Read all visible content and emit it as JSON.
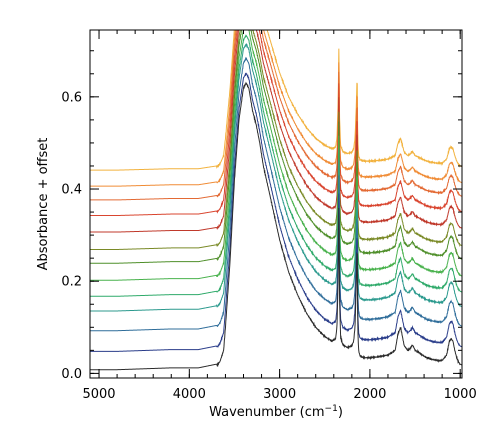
{
  "chart_data": {
    "type": "line",
    "xlabel": "Wavenumber (cm",
    "xlabel_sup": "−1",
    "xlabel_end": ")",
    "ylabel": "Absorbance + offset",
    "xlim": [
      5100,
      980
    ],
    "ylim": [
      -0.01,
      0.745
    ],
    "x_reversed": true,
    "grid": false,
    "x_ticks": [
      {
        "value": 5000,
        "label": "5000"
      },
      {
        "value": 4000,
        "label": "4000"
      },
      {
        "value": 3000,
        "label": "3000"
      },
      {
        "value": 2000,
        "label": "2000"
      },
      {
        "value": 1000,
        "label": "1000"
      }
    ],
    "y_ticks": [
      {
        "value": 0.0,
        "label": "0.0"
      },
      {
        "value": 0.2,
        "label": "0.2"
      },
      {
        "value": 0.4,
        "label": "0.4"
      },
      {
        "value": 0.6,
        "label": "0.6"
      }
    ],
    "x_minor_step": 200,
    "y_minor_step": 0.05,
    "spectrum_shape": {
      "x": [
        5100,
        4800,
        4500,
        4200,
        3900,
        3700,
        3690,
        3660,
        3620,
        3600,
        3550,
        3500,
        3450,
        3400,
        3370,
        3340,
        3300,
        3260,
        3220,
        3180,
        3100,
        3000,
        2900,
        2800,
        2700,
        2600,
        2500,
        2420,
        2380,
        2365,
        2352,
        2343,
        2336,
        2325,
        2300,
        2250,
        2200,
        2180,
        2165,
        2150,
        2141,
        2135,
        2125,
        2110,
        2080,
        2050,
        2000,
        1900,
        1800,
        1720,
        1690,
        1660,
        1640,
        1620,
        1580,
        1550,
        1530,
        1510,
        1500,
        1480,
        1450,
        1420,
        1380,
        1340,
        1300,
        1250,
        1200,
        1150,
        1120,
        1100,
        1080,
        1060,
        1040,
        1020,
        1000,
        980
      ],
      "y": [
        0.008,
        0.008,
        0.01,
        0.012,
        0.012,
        0.02,
        0.018,
        0.026,
        0.05,
        0.1,
        0.24,
        0.42,
        0.55,
        0.62,
        0.63,
        0.618,
        0.57,
        0.54,
        0.5,
        0.45,
        0.38,
        0.29,
        0.22,
        0.17,
        0.13,
        0.1,
        0.08,
        0.07,
        0.075,
        0.1,
        0.2,
        0.38,
        0.16,
        0.08,
        0.062,
        0.056,
        0.06,
        0.07,
        0.1,
        0.2,
        0.29,
        0.1,
        0.05,
        0.038,
        0.035,
        0.034,
        0.034,
        0.036,
        0.04,
        0.05,
        0.085,
        0.1,
        0.08,
        0.06,
        0.05,
        0.055,
        0.062,
        0.055,
        0.05,
        0.048,
        0.044,
        0.04,
        0.035,
        0.032,
        0.03,
        0.028,
        0.028,
        0.04,
        0.07,
        0.075,
        0.07,
        0.05,
        0.035,
        0.025,
        0.02,
        0.018
      ]
    },
    "series": [
      {
        "color": "#2b2b2b",
        "offset": 0.0,
        "intensity": 1.0
      },
      {
        "color": "#2a3d8a",
        "offset": 0.04,
        "intensity": 0.97
      },
      {
        "color": "#2f6d9a",
        "offset": 0.085,
        "intensity": 0.95
      },
      {
        "color": "#2c9a8e",
        "offset": 0.128,
        "intensity": 0.93
      },
      {
        "color": "#2faa6a",
        "offset": 0.16,
        "intensity": 0.91
      },
      {
        "color": "#49b24d",
        "offset": 0.195,
        "intensity": 0.89
      },
      {
        "color": "#4f8f2a",
        "offset": 0.232,
        "intensity": 0.87
      },
      {
        "color": "#7a8a27",
        "offset": 0.262,
        "intensity": 0.85
      },
      {
        "color": "#c0392b",
        "offset": 0.3,
        "intensity": 0.83
      },
      {
        "color": "#d9452f",
        "offset": 0.336,
        "intensity": 0.81
      },
      {
        "color": "#e36a34",
        "offset": 0.37,
        "intensity": 0.79
      },
      {
        "color": "#f08c36",
        "offset": 0.4,
        "intensity": 0.77
      },
      {
        "color": "#f2b23e",
        "offset": 0.435,
        "intensity": 0.75
      }
    ]
  }
}
